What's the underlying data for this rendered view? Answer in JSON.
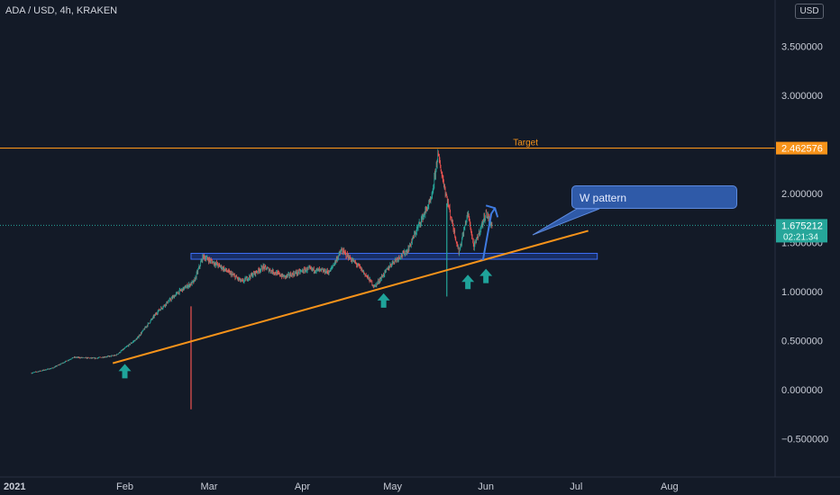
{
  "header": {
    "title": "ADA / USD, 4h, KRAKEN",
    "currency_button": "USD"
  },
  "annotations": {
    "target_label": "Target",
    "callout_text": "W pattern"
  },
  "badges": {
    "target_price": "2.462576",
    "last_price": "1.675212",
    "countdown": "02:21:34"
  },
  "colors": {
    "background": "#131a27",
    "orange": "#f7931a",
    "teal": "#26a69a",
    "red": "#ef5350",
    "blue_zone": "#2962ff"
  },
  "chart_data": {
    "type": "candlestick",
    "title": "ADA / USD, 4h, KRAKEN",
    "y_ticks": [
      "3.500000",
      "3.000000",
      "2.000000",
      "1.500000",
      "1.000000",
      "0.500000",
      "0.000000",
      "−0.500000"
    ],
    "y_tick_values": [
      3.5,
      3.0,
      2.0,
      1.5,
      1.0,
      0.5,
      0.0,
      -0.5
    ],
    "ylim": [
      -0.72,
      3.95
    ],
    "x_ticks": [
      "2021",
      "Feb",
      "Mar",
      "Apr",
      "May",
      "Jun",
      "Jul",
      "Aug"
    ],
    "x_tick_dates": [
      "2021-01-01",
      "2021-02-01",
      "2021-03-01",
      "2021-04-01",
      "2021-05-01",
      "2021-06-01",
      "2021-07-01",
      "2021-08-01"
    ],
    "xlim": [
      "2021-01-01",
      "2021-08-31"
    ],
    "price_path": [
      [
        "2021-01-01",
        0.17
      ],
      [
        "2021-01-08",
        0.22
      ],
      [
        "2021-01-15",
        0.33
      ],
      [
        "2021-01-22",
        0.32
      ],
      [
        "2021-01-29",
        0.35
      ],
      [
        "2021-02-05",
        0.52
      ],
      [
        "2021-02-12",
        0.8
      ],
      [
        "2021-02-19",
        1.0
      ],
      [
        "2021-02-24",
        1.1
      ],
      [
        "2021-02-27",
        1.36
      ],
      [
        "2021-03-05",
        1.25
      ],
      [
        "2021-03-12",
        1.1
      ],
      [
        "2021-03-19",
        1.25
      ],
      [
        "2021-03-26",
        1.15
      ],
      [
        "2021-04-03",
        1.23
      ],
      [
        "2021-04-10",
        1.2
      ],
      [
        "2021-04-14",
        1.42
      ],
      [
        "2021-04-20",
        1.25
      ],
      [
        "2021-04-25",
        1.05
      ],
      [
        "2021-05-01",
        1.3
      ],
      [
        "2021-05-06",
        1.42
      ],
      [
        "2021-05-10",
        1.7
      ],
      [
        "2021-05-14",
        1.95
      ],
      [
        "2021-05-16",
        2.4
      ],
      [
        "2021-05-19",
        1.95
      ],
      [
        "2021-05-23",
        1.4
      ],
      [
        "2021-05-26",
        1.8
      ],
      [
        "2021-05-28",
        1.45
      ],
      [
        "2021-06-01",
        1.8
      ],
      [
        "2021-06-03",
        1.675
      ]
    ],
    "trendline": {
      "start": [
        "2021-01-28",
        0.27
      ],
      "end": [
        "2021-07-05",
        1.62
      ]
    },
    "target_level": 2.462576,
    "last_price": 1.675212,
    "support_zone": [
      1.33,
      1.39
    ],
    "support_zone_dates": [
      "2021-02-23",
      "2021-07-08"
    ],
    "arrow_dates": [
      [
        "2021-02-01",
        0.18
      ],
      [
        "2021-04-28",
        0.9
      ],
      [
        "2021-05-26",
        1.09
      ],
      [
        "2021-06-01",
        1.15
      ]
    ],
    "legend": "none",
    "grid": false
  }
}
